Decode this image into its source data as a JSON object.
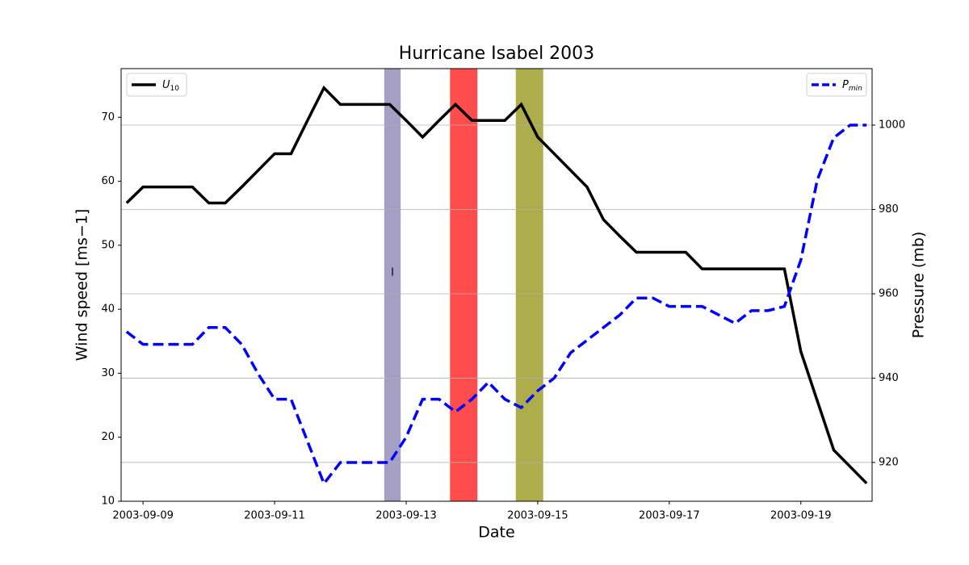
{
  "chart_data": {
    "type": "line",
    "title": "Hurricane Isabel 2003",
    "xlabel": "Date",
    "ylabel": "Wind speed [ms−1]",
    "y2label": "Pressure (mb)",
    "x": [
      "2003-09-08 18:00",
      "2003-09-09 00:00",
      "2003-09-09 06:00",
      "2003-09-09 12:00",
      "2003-09-09 18:00",
      "2003-09-10 00:00",
      "2003-09-10 06:00",
      "2003-09-10 12:00",
      "2003-09-10 18:00",
      "2003-09-11 00:00",
      "2003-09-11 06:00",
      "2003-09-11 12:00",
      "2003-09-11 18:00",
      "2003-09-12 00:00",
      "2003-09-12 06:00",
      "2003-09-12 12:00",
      "2003-09-12 18:00",
      "2003-09-13 00:00",
      "2003-09-13 06:00",
      "2003-09-13 12:00",
      "2003-09-13 18:00",
      "2003-09-14 00:00",
      "2003-09-14 06:00",
      "2003-09-14 12:00",
      "2003-09-14 18:00",
      "2003-09-15 00:00",
      "2003-09-15 06:00",
      "2003-09-15 12:00",
      "2003-09-15 18:00",
      "2003-09-16 00:00",
      "2003-09-16 06:00",
      "2003-09-16 12:00",
      "2003-09-16 18:00",
      "2003-09-17 00:00",
      "2003-09-17 06:00",
      "2003-09-17 12:00",
      "2003-09-17 18:00",
      "2003-09-18 00:00",
      "2003-09-18 06:00",
      "2003-09-18 12:00",
      "2003-09-18 18:00",
      "2003-09-19 00:00",
      "2003-09-19 06:00",
      "2003-09-19 12:00",
      "2003-09-19 18:00",
      "2003-09-20 00:00"
    ],
    "series": [
      {
        "name": "U10",
        "color": "#000000",
        "dash": "solid",
        "axis": "y",
        "values": [
          56.6,
          59.1,
          59.1,
          59.1,
          59.1,
          56.6,
          56.6,
          59.1,
          61.7,
          64.3,
          64.3,
          69.5,
          74.6,
          72.0,
          72.0,
          72.0,
          72.0,
          69.5,
          66.9,
          69.5,
          72.0,
          69.5,
          69.5,
          69.5,
          72.0,
          66.9,
          64.3,
          61.7,
          59.1,
          54.0,
          51.4,
          48.9,
          48.9,
          48.9,
          48.9,
          46.3,
          46.3,
          46.3,
          46.3,
          46.3,
          46.3,
          33.4,
          25.7,
          18.0,
          15.4,
          12.8
        ],
        "legend": "upper left"
      },
      {
        "name": "Pmin",
        "color": "#0000ff",
        "dash": "dashed",
        "axis": "y2",
        "values": [
          951,
          948,
          948,
          948,
          948,
          952,
          952,
          948,
          941,
          935,
          935,
          925,
          915,
          920,
          920,
          920,
          920,
          926,
          935,
          935,
          932,
          935,
          939,
          935,
          933,
          937,
          940,
          946,
          949,
          952,
          955,
          959,
          959,
          957,
          957,
          957,
          955,
          953,
          956,
          956,
          957,
          968,
          987,
          997,
          1000,
          1000
        ],
        "legend": "upper right"
      }
    ],
    "spans": [
      {
        "start": "2003-09-12 16:00",
        "end": "2003-09-12 22:00",
        "color": "#7f77aa"
      },
      {
        "start": "2003-09-13 16:00",
        "end": "2003-09-14 02:00",
        "color": "#ff0000"
      },
      {
        "start": "2003-09-14 16:00",
        "end": "2003-09-15 02:00",
        "color": "#8a8a00"
      }
    ],
    "annotations": [
      {
        "text": "I",
        "x": "2003-09-12 19:00",
        "y": 45.7
      }
    ],
    "xlim": [
      "2003-09-08 16:00",
      "2003-09-20 02:00"
    ],
    "xticks": [
      "2003-09-09",
      "2003-09-11",
      "2003-09-13",
      "2003-09-15",
      "2003-09-17",
      "2003-09-19"
    ],
    "ylim": [
      10,
      77.6
    ],
    "yticks": [
      10,
      20,
      30,
      40,
      50,
      60,
      70
    ],
    "y2lim": [
      910.8,
      1013.4
    ],
    "y2ticks": [
      920,
      940,
      960,
      980,
      1000
    ],
    "grid": "y2"
  }
}
